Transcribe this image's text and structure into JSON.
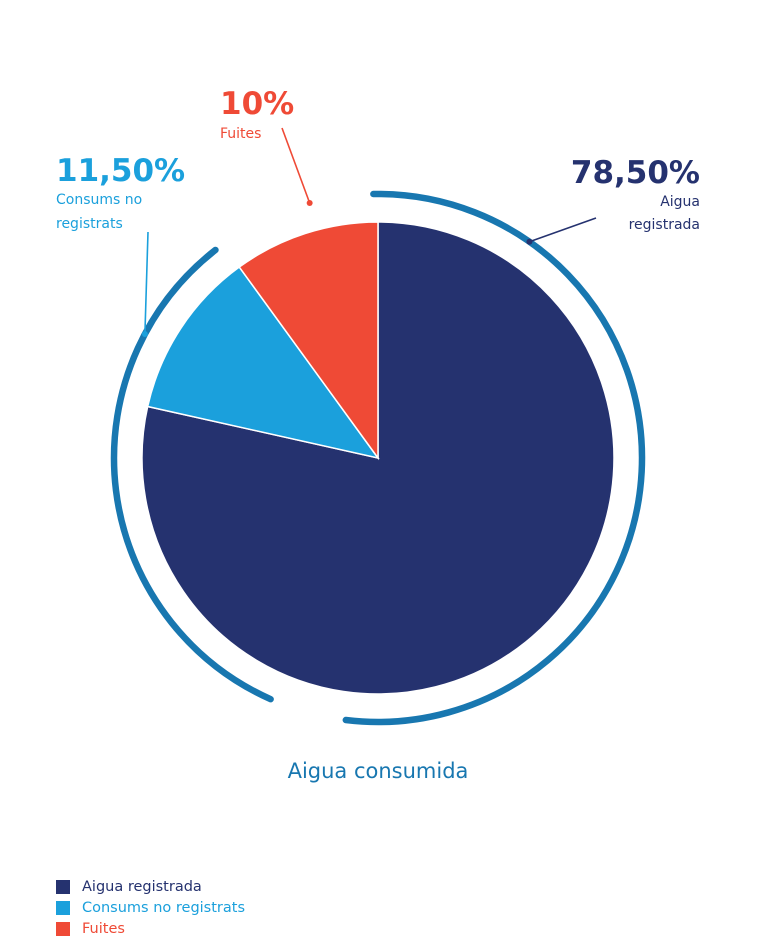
{
  "chart_data": {
    "type": "pie",
    "title": "",
    "caption": "Aigua consumida",
    "slices": [
      {
        "name": "Aigua registrada",
        "value": 78.5,
        "value_label": "78,50%",
        "label_lines": [
          "Aigua",
          "registrada"
        ],
        "color": "#25326f"
      },
      {
        "name": "Consums no registrats",
        "value": 11.5,
        "value_label": "11,50%",
        "label_lines": [
          "Consums no",
          "registrats"
        ],
        "color": "#1ba0dc"
      },
      {
        "name": "Fuites",
        "value": 10,
        "value_label": "10%",
        "label_lines": [
          "Fuites"
        ],
        "color": "#ef4a36"
      }
    ],
    "legend_placement": "bottom-left"
  },
  "colors": {
    "ring": "#1877b0",
    "caption": "#1877b0"
  }
}
